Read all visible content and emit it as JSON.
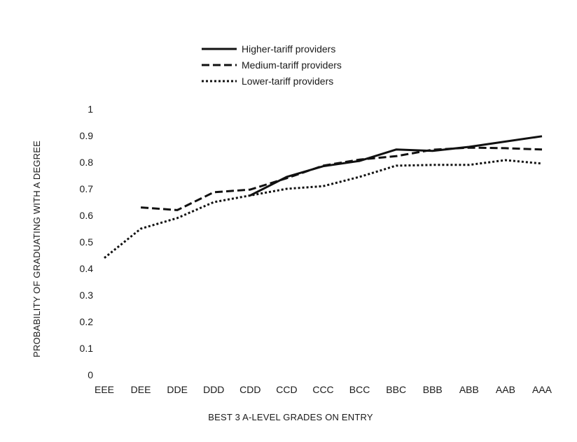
{
  "chart_data": {
    "type": "line",
    "title": "",
    "xlabel": "BEST 3 A-LEVEL GRADES ON ENTRY",
    "ylabel": "PROBABILITY  OF  GRADUATING  WITH  A DEGREE",
    "ylim": [
      0,
      1
    ],
    "y_ticks": [
      "0",
      "0.1",
      "0.2",
      "0.3",
      "0.4",
      "0.5",
      "0.6",
      "0.7",
      "0.8",
      "0.9",
      "1"
    ],
    "categories": [
      "EEE",
      "DEE",
      "DDE",
      "DDD",
      "CDD",
      "CCD",
      "CCC",
      "BCC",
      "BBC",
      "BBB",
      "ABB",
      "AAB",
      "AAA"
    ],
    "grid": false,
    "legend_position": "top",
    "series": [
      {
        "name": "Higher-tariff providers",
        "line_style": "solid",
        "values": [
          null,
          null,
          null,
          null,
          0.675,
          0.745,
          0.785,
          0.805,
          0.848,
          0.843,
          0.858,
          0.878,
          0.898
        ]
      },
      {
        "name": "Medium-tariff providers",
        "line_style": "dashed",
        "values": [
          null,
          0.63,
          0.62,
          0.687,
          0.697,
          0.74,
          0.787,
          0.81,
          0.823,
          0.847,
          0.855,
          0.853,
          0.848
        ]
      },
      {
        "name": "Lower-tariff providers",
        "line_style": "dotted",
        "values": [
          0.44,
          0.55,
          0.59,
          0.65,
          0.675,
          0.7,
          0.71,
          0.745,
          0.787,
          0.79,
          0.79,
          0.808,
          0.795
        ]
      }
    ],
    "line_color": "#111111"
  }
}
